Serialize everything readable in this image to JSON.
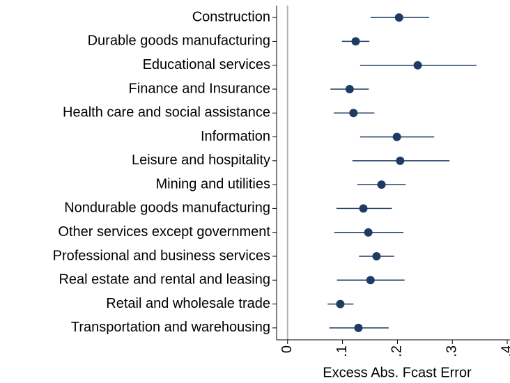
{
  "chart_data": {
    "type": "dot",
    "categories": [
      "Construction",
      "Durable goods manufacturing",
      "Educational services",
      "Finance and Insurance",
      "Health care and social assistance",
      "Information",
      "Leisure and hospitality",
      "Mining and utilities",
      "Nondurable goods manufacturing",
      "Other services except government",
      "Professional and business services",
      "Real estate and rental and leasing",
      "Retail and wholesale trade",
      "Transportation and warehousing"
    ],
    "values": [
      0.203,
      0.124,
      0.237,
      0.113,
      0.12,
      0.199,
      0.205,
      0.171,
      0.138,
      0.147,
      0.162,
      0.151,
      0.096,
      0.129
    ],
    "low": [
      0.151,
      0.099,
      0.132,
      0.078,
      0.084,
      0.132,
      0.118,
      0.127,
      0.089,
      0.085,
      0.13,
      0.09,
      0.073,
      0.076
    ],
    "high": [
      0.258,
      0.149,
      0.344,
      0.148,
      0.158,
      0.267,
      0.295,
      0.215,
      0.19,
      0.211,
      0.194,
      0.213,
      0.12,
      0.184
    ],
    "color": "#1f3b63",
    "xlabel": "Excess Abs. Fcast Error",
    "xlim": [
      -0.02,
      0.405
    ],
    "xticks": [
      0,
      {
        "value": 0.1,
        "label": ".1"
      },
      {
        "value": 0.2,
        "label": ".2"
      },
      {
        "value": 0.3,
        "label": ".3"
      },
      {
        "value": 0.4,
        "label": ".4"
      }
    ]
  }
}
